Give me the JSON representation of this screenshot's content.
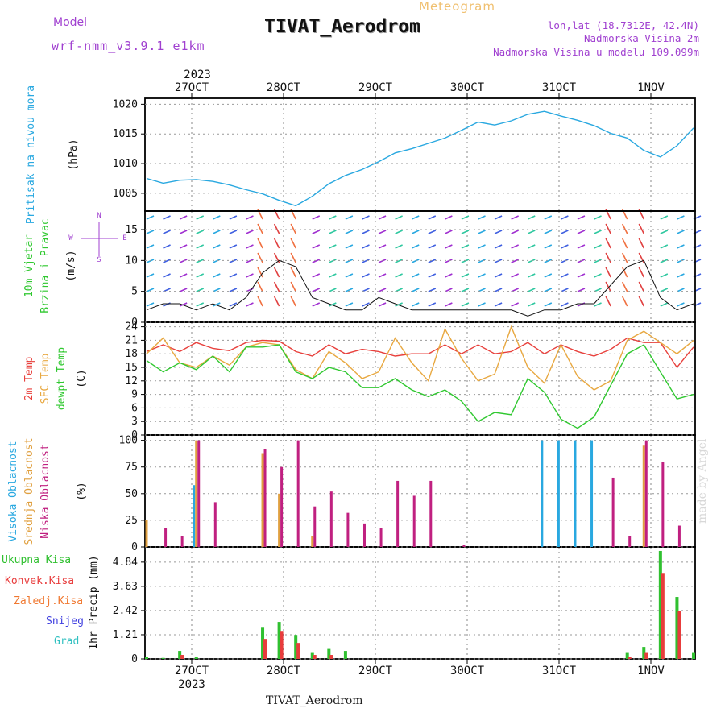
{
  "header": {
    "model_label": "Model",
    "model_value": "wrf-nmm_v3.9.1 e1km",
    "title": "TIVAT_Aerodrom",
    "subtitle": "Meteogram",
    "lonlat": "lon,lat (18.7312E, 42.4N)",
    "altitude": "Nadmorska Visina 2m",
    "model_altitude": "Nadmorska Visina u modelu 109.099m"
  },
  "footer": "TIVAT_Aerodrom",
  "signature": "made by Angel",
  "year_label": "2023",
  "colors": {
    "pressure": "#29a8e0",
    "temp2m": "#e8403c",
    "sfc_temp": "#e8a840",
    "dewpt": "#30c830",
    "high_cloud": "#29a8e0",
    "mid_cloud": "#e0a040",
    "low_cloud": "#c02080",
    "total_precip": "#30c030",
    "conv_precip": "#e83c3c",
    "frozen_precip": "#f07830",
    "snow": "#4040e0",
    "graupel": "#30c0c0",
    "label_purple": "#a040d0"
  },
  "chart_data": [
    {
      "type": "line",
      "panel": "pressure",
      "title": "",
      "ylabel_name": "Pritisak na nivou mora",
      "ylabel_unit": "(hPa)",
      "ylim": [
        1002,
        1021
      ],
      "yticks": [
        "1005",
        "1010",
        "1015",
        "1020"
      ],
      "x": [
        "26OCT 14",
        "26OCT 18",
        "26OCT 21",
        "27OCT 00",
        "27OCT 03",
        "27OCT 06",
        "27OCT 09",
        "27OCT 12",
        "27OCT 15",
        "27OCT 18",
        "27OCT 21",
        "28OCT 00",
        "28OCT 03",
        "28OCT 06",
        "28OCT 09",
        "28OCT 12",
        "28OCT 15",
        "28OCT 18",
        "29OCT 00",
        "29OCT 06",
        "29OCT 12",
        "29OCT 18",
        "30OCT 00",
        "30OCT 06",
        "30OCT 12",
        "30OCT 18",
        "31OCT 00",
        "31OCT 06",
        "31OCT 12",
        "31OCT 18",
        "01NOV 00",
        "01NOV 06",
        "01NOV 12",
        "01NOV 18"
      ],
      "series": [
        {
          "values": [
            1007.5,
            1006.7,
            1007.2,
            1007.3,
            1007.0,
            1006.4,
            1005.6,
            1004.9,
            1003.8,
            1002.9,
            1004.5,
            1006.6,
            1008.0,
            1009.0,
            1010.3,
            1011.8,
            1012.5,
            1013.4,
            1014.3,
            1015.6,
            1017.0,
            1016.5,
            1017.2,
            1018.3,
            1018.8,
            1018.0,
            1017.3,
            1016.4,
            1015.1,
            1014.3,
            1012.2,
            1011.1,
            1013.0,
            1016.0
          ]
        }
      ]
    },
    {
      "type": "line",
      "panel": "wind",
      "title": "",
      "ylabel_name": "10m Vjetar Brzina i Pravac",
      "ylabel_unit": "(m/s)",
      "compass": {
        "w": "W",
        "e": "E",
        "n": "N",
        "s": "S"
      },
      "ylim": [
        0,
        18
      ],
      "yticks": [
        "0",
        "5",
        "10",
        "15"
      ],
      "series": [
        {
          "name_role": "speed",
          "values": [
            2,
            3,
            3,
            2,
            3,
            2,
            4,
            8,
            10,
            9,
            4,
            3,
            2,
            2,
            4,
            3,
            2,
            2,
            2,
            2,
            2,
            2,
            2,
            1,
            2,
            2,
            3,
            3,
            6,
            9,
            10,
            4,
            2,
            3
          ]
        }
      ]
    },
    {
      "type": "line",
      "panel": "temperature",
      "title": "",
      "ylabel_names": [
        "2m Temp",
        "SFC Temp",
        "dewpt Temp"
      ],
      "ylabel_unit": "(C)",
      "ylim": [
        0,
        25
      ],
      "yticks": [
        "0",
        "3",
        "6",
        "9",
        "12",
        "15",
        "18",
        "21",
        "24"
      ],
      "series": [
        {
          "name": "2m Temp",
          "values": [
            18.5,
            20,
            18.5,
            20.5,
            19.2,
            18.7,
            20.5,
            21,
            20.8,
            18.5,
            17.5,
            20,
            18,
            19,
            18.5,
            17.5,
            18,
            18,
            20,
            18,
            20,
            18,
            18.5,
            20.5,
            18,
            20,
            18.5,
            17.5,
            19,
            21.5,
            20.5,
            20.5,
            15,
            19.5
          ]
        },
        {
          "name": "SFC Temp",
          "values": [
            18,
            21.5,
            16,
            15,
            17.5,
            15.5,
            19.5,
            20.5,
            20,
            14.5,
            12.5,
            18.5,
            16,
            12.5,
            14,
            21.5,
            16,
            12,
            23.5,
            17,
            12,
            13.5,
            24,
            15,
            11.5,
            20,
            13,
            10,
            12,
            21,
            23,
            20.5,
            18,
            21
          ]
        },
        {
          "name": "dewpt Temp",
          "values": [
            16.5,
            14,
            16,
            14.5,
            17.5,
            14,
            19.5,
            19.5,
            20,
            14,
            12.5,
            15,
            14,
            10.5,
            10.5,
            12.5,
            10,
            8.5,
            10,
            7.5,
            3,
            5,
            4.5,
            12.5,
            9.5,
            3.5,
            1.5,
            4,
            11,
            18,
            20,
            14,
            8,
            9
          ]
        }
      ]
    },
    {
      "type": "bar",
      "panel": "clouds",
      "title": "",
      "ylabel_names": [
        "Visoka Oblacnost",
        "Srednja Oblacnost",
        "Niska Oblacnost"
      ],
      "ylabel_unit": "(%)",
      "ylim": [
        0,
        105
      ],
      "yticks": [
        "0",
        "25",
        "50",
        "75",
        "100"
      ],
      "series": [
        {
          "name": "Visoka Oblacnost",
          "values": [
            0,
            0,
            0,
            58,
            0,
            0,
            0,
            0,
            0,
            0,
            0,
            0,
            0,
            0,
            0,
            0,
            0,
            0,
            0,
            0,
            0,
            0,
            0,
            0,
            100,
            100,
            100,
            100,
            0,
            0,
            0,
            0,
            0,
            0
          ]
        },
        {
          "name": "Srednja Oblacnost",
          "values": [
            25,
            0,
            0,
            100,
            0,
            0,
            0,
            88,
            50,
            0,
            10,
            0,
            0,
            0,
            0,
            0,
            0,
            0,
            0,
            0,
            0,
            0,
            0,
            0,
            0,
            0,
            0,
            0,
            0,
            0,
            95,
            0,
            0,
            0
          ]
        },
        {
          "name": "Niska Oblacnost",
          "values": [
            0,
            18,
            10,
            100,
            42,
            0,
            0,
            92,
            75,
            100,
            38,
            52,
            32,
            22,
            18,
            62,
            48,
            62,
            0,
            2,
            0,
            0,
            0,
            0,
            0,
            0,
            0,
            0,
            65,
            10,
            100,
            80,
            20,
            0
          ]
        }
      ]
    },
    {
      "type": "bar",
      "panel": "precipitation",
      "title": "",
      "ylabel_unit": "1hr Precip (mm)",
      "legend_names": [
        "Ukupna Kisa",
        "Konvek.Kisa",
        "Zaledj.Kisa",
        "Snijeg",
        "Grad"
      ],
      "ylim": [
        0,
        5.6
      ],
      "yticks": [
        "0",
        "1.21",
        "2.42",
        "3.63",
        "4.84"
      ],
      "series": [
        {
          "name": "Ukupna Kisa",
          "values": [
            0.1,
            0.05,
            0.4,
            0.1,
            0,
            0,
            0,
            1.6,
            1.85,
            1.2,
            0.3,
            0.5,
            0.4,
            0,
            0,
            0,
            0,
            0,
            0,
            0,
            0,
            0,
            0,
            0,
            0,
            0,
            0,
            0,
            0,
            0.3,
            0.6,
            5.4,
            3.1,
            0.3
          ]
        },
        {
          "name": "Konvek.Kisa",
          "values": [
            0,
            0,
            0.2,
            0,
            0,
            0,
            0,
            1.0,
            1.4,
            0.8,
            0.2,
            0.2,
            0,
            0,
            0,
            0,
            0,
            0,
            0,
            0,
            0,
            0,
            0,
            0,
            0,
            0,
            0,
            0,
            0,
            0.1,
            0.3,
            4.3,
            2.4,
            0
          ]
        }
      ]
    },
    {
      "type": "line",
      "panel": "time_axis",
      "title": "",
      "categories": [
        "27OCT",
        "28OCT",
        "29OCT",
        "30OCT",
        "31OCT",
        "1NOV"
      ]
    }
  ]
}
